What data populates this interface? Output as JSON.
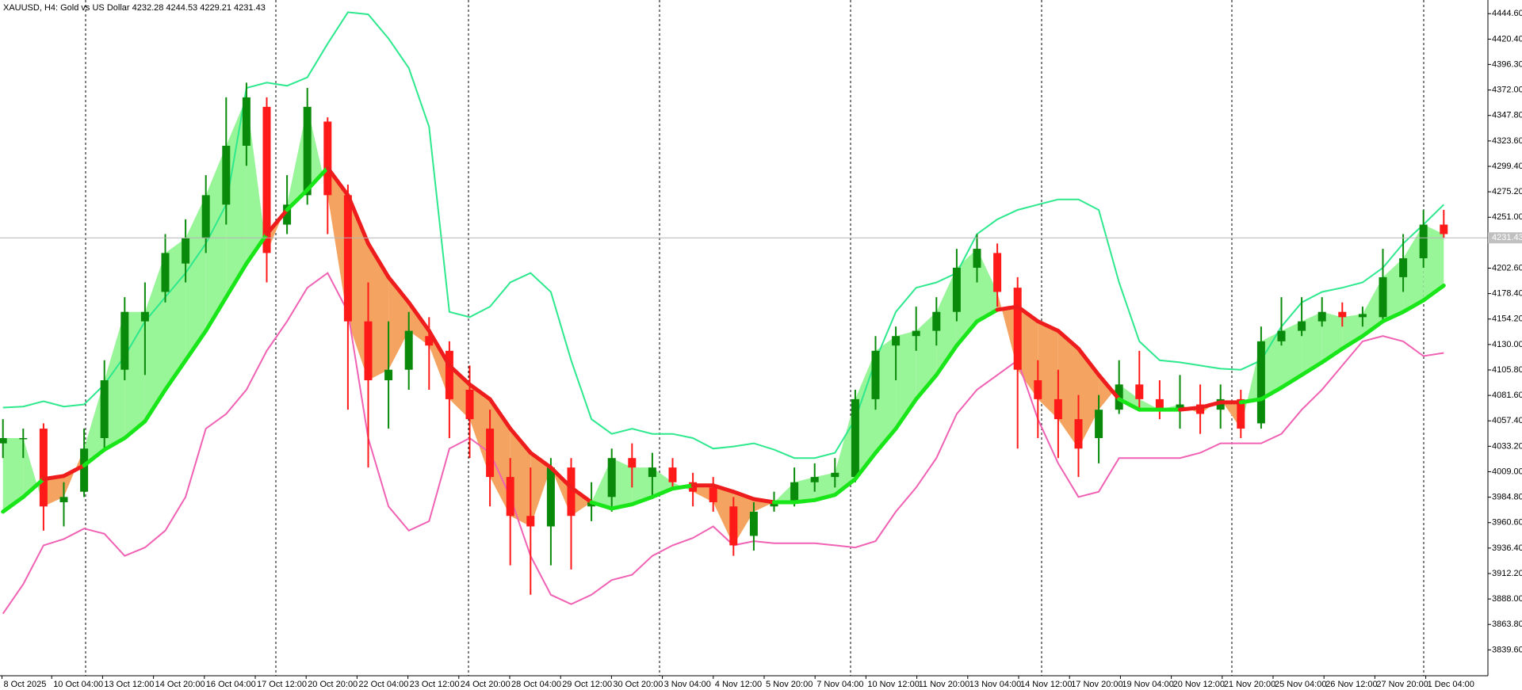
{
  "chart_data": {
    "type": "candlestick",
    "title": "XAUUSD, H4:  Gold vs US Dollar  4232.28 4244.53 4229.21 4231.43",
    "grid": false,
    "ylim": [
      3815.0,
      4457.6
    ],
    "yticks": [
      {
        "value": 4444.6,
        "label": "4444.60"
      },
      {
        "value": 4420.4,
        "label": "4420.40"
      },
      {
        "value": 4396.3,
        "label": "4396.30"
      },
      {
        "value": 4372.0,
        "label": "4372.00"
      },
      {
        "value": 4347.8,
        "label": "4347.80"
      },
      {
        "value": 4323.6,
        "label": "4323.60"
      },
      {
        "value": 4299.4,
        "label": "4299.40"
      },
      {
        "value": 4275.2,
        "label": "4275.20"
      },
      {
        "value": 4251.0,
        "label": "4251.00"
      },
      {
        "value": 4202.6,
        "label": "4202.60"
      },
      {
        "value": 4178.4,
        "label": "4178.40"
      },
      {
        "value": 4154.2,
        "label": "4154.20"
      },
      {
        "value": 4130.0,
        "label": "4130.00"
      },
      {
        "value": 4105.8,
        "label": "4105.80"
      },
      {
        "value": 4081.6,
        "label": "4081.60"
      },
      {
        "value": 4057.4,
        "label": "4057.40"
      },
      {
        "value": 4033.2,
        "label": "4033.20"
      },
      {
        "value": 4009.0,
        "label": "4009.00"
      },
      {
        "value": 3984.8,
        "label": "3984.80"
      },
      {
        "value": 3960.6,
        "label": "3960.60"
      },
      {
        "value": 3936.4,
        "label": "3936.40"
      },
      {
        "value": 3912.2,
        "label": "3912.20"
      },
      {
        "value": 3888.0,
        "label": "3888.00"
      },
      {
        "value": 3863.8,
        "label": "3863.80"
      },
      {
        "value": 3839.6,
        "label": "3839.60"
      }
    ],
    "current_price": 4231.43,
    "xtick_labels": [
      "8 Oct 2025",
      "10 Oct 04:00",
      "13 Oct 12:00",
      "14 Oct 20:00",
      "16 Oct 04:00",
      "17 Oct 12:00",
      "20 Oct 20:00",
      "22 Oct 04:00",
      "23 Oct 12:00",
      "24 Oct 20:00",
      "28 Oct 04:00",
      "29 Oct 12:00",
      "30 Oct 20:00",
      "3 Nov 04:00",
      "4 Nov 12:00",
      "5 Nov 20:00",
      "7 Nov 04:00",
      "10 Nov 12:00",
      "11 Nov 20:00",
      "13 Nov 04:00",
      "14 Nov 12:00",
      "17 Nov 20:00",
      "19 Nov 04:00",
      "20 Nov 12:00",
      "21 Nov 20:00",
      "25 Nov 04:00",
      "26 Nov 12:00",
      "27 Nov 20:00",
      "1 Dec 04:00"
    ],
    "candles": {
      "up_color": "#0a8a0a",
      "down_color": "#ff1a1a",
      "open": [
        4036,
        4041,
        4050,
        3980,
        3990,
        4041,
        4106,
        4152,
        4180,
        4207,
        4231,
        4263,
        4319,
        4356,
        4244,
        4272,
        4342,
        4272,
        4152,
        4096,
        4106,
        4138,
        4124,
        4087,
        4050,
        4004,
        3967,
        3957,
        4013,
        3976,
        3985,
        4022,
        4004,
        4013,
        3999,
        3994,
        3976,
        3948,
        3976,
        3980,
        3999,
        4004,
        4004,
        4078,
        4129,
        4138,
        4143,
        4161,
        4203,
        4217,
        4184,
        4096,
        4078,
        4059,
        4041,
        4068,
        4092,
        4078,
        4068,
        4073,
        4068,
        4078,
        4055,
        4133,
        4143,
        4152,
        4161,
        4156,
        4156,
        4194,
        4212,
        4244
      ],
      "high": [
        4059,
        4050,
        4055,
        3999,
        4050,
        4115,
        4175,
        4189,
        4235,
        4249,
        4291,
        4365,
        4379,
        4365,
        4291,
        4374,
        4346,
        4282,
        4189,
        4152,
        4161,
        4156,
        4133,
        4110,
        4068,
        4022,
        4013,
        4022,
        4022,
        3999,
        4031,
        4036,
        4027,
        4022,
        4008,
        4004,
        3985,
        3980,
        3990,
        4013,
        4017,
        4022,
        4087,
        4138,
        4147,
        4166,
        4175,
        4221,
        4235,
        4226,
        4194,
        4115,
        4106,
        4082,
        4082,
        4115,
        4124,
        4096,
        4101,
        4092,
        4092,
        4087,
        4147,
        4175,
        4175,
        4175,
        4170,
        4166,
        4221,
        4235,
        4258,
        4258
      ],
      "low": [
        4022,
        4022,
        3953,
        3957,
        3985,
        4031,
        4096,
        4101,
        4170,
        4189,
        4217,
        4244,
        4300,
        4189,
        4235,
        4263,
        4235,
        4068,
        4013,
        4050,
        4087,
        4087,
        4041,
        4022,
        3976,
        3920,
        3892,
        3920,
        3916,
        3962,
        3971,
        3994,
        3985,
        3994,
        3976,
        3971,
        3929,
        3934,
        3971,
        3976,
        3990,
        3994,
        3999,
        4068,
        4096,
        4124,
        4129,
        4152,
        4189,
        4166,
        4031,
        4041,
        4022,
        4004,
        4017,
        4064,
        4068,
        4059,
        4050,
        4045,
        4050,
        4041,
        4050,
        4129,
        4138,
        4147,
        4147,
        4147,
        4152,
        4180,
        4203,
        4231
      ],
      "close": [
        4041,
        4041,
        3976,
        3985,
        4031,
        4096,
        4161,
        4161,
        4217,
        4231,
        4272,
        4319,
        4365,
        4217,
        4263,
        4356,
        4272,
        4152,
        4096,
        4106,
        4143,
        4129,
        4078,
        4059,
        4004,
        3967,
        3957,
        4013,
        3967,
        3980,
        4022,
        4013,
        4013,
        3999,
        3990,
        3980,
        3939,
        3971,
        3980,
        3999,
        4004,
        4008,
        4078,
        4124,
        4138,
        4143,
        4161,
        4203,
        4221,
        4180,
        4106,
        4078,
        4059,
        4031,
        4068,
        4092,
        4078,
        4068,
        4073,
        4064,
        4078,
        4050,
        4133,
        4143,
        4152,
        4161,
        4156,
        4159,
        4194,
        4212,
        4244,
        4235
      ]
    },
    "ma": {
      "up_color": "#19e619",
      "down_color": "#ee1c1c",
      "fill_up_color": "#98f598",
      "fill_down_color": "#f4a460",
      "values": [
        3971,
        3985,
        4002,
        4005,
        4015,
        4030,
        4041,
        4057,
        4087,
        4115,
        4143,
        4175,
        4207,
        4235,
        4258,
        4277,
        4298,
        4272,
        4226,
        4194,
        4170,
        4143,
        4110,
        4092,
        4078,
        4050,
        4027,
        4013,
        3994,
        3980,
        3974,
        3978,
        3985,
        3993,
        3996,
        3996,
        3990,
        3983,
        3980,
        3980,
        3982,
        3987,
        4002,
        4027,
        4050,
        4078,
        4101,
        4129,
        4152,
        4163,
        4166,
        4152,
        4143,
        4126,
        4101,
        4078,
        4068,
        4068,
        4068,
        4070,
        4075,
        4075,
        4078,
        4089,
        4101,
        4113,
        4126,
        4138,
        4152,
        4161,
        4172,
        4186
      ]
    },
    "upper_band": {
      "color": "#2ee88e",
      "values": [
        4070,
        4071,
        4076,
        4071,
        4073,
        4092,
        4119,
        4152,
        4175,
        4198,
        4226,
        4263,
        4374,
        4379,
        4376,
        4384,
        4416,
        4446,
        4444,
        4421,
        4393,
        4337,
        4161,
        4156,
        4166,
        4189,
        4198,
        4180,
        4115,
        4059,
        4045,
        4050,
        4045,
        4045,
        4041,
        4031,
        4033,
        4036,
        4030,
        4022,
        4022,
        4027,
        4059,
        4115,
        4161,
        4184,
        4189,
        4198,
        4235,
        4249,
        4258,
        4263,
        4268,
        4268,
        4258,
        4189,
        4133,
        4115,
        4113,
        4110,
        4107,
        4106,
        4115,
        4147,
        4170,
        4180,
        4184,
        4189,
        4203,
        4226,
        4244,
        4263
      ]
    },
    "lower_band": {
      "color": "#f062b4",
      "values": [
        3874,
        3902,
        3939,
        3945,
        3955,
        3950,
        3929,
        3937,
        3953,
        3985,
        4050,
        4064,
        4087,
        4124,
        4152,
        4184,
        4198,
        4161,
        4041,
        3976,
        3953,
        3962,
        4031,
        4041,
        4027,
        3985,
        3929,
        3892,
        3883,
        3892,
        3906,
        3911,
        3929,
        3939,
        3946,
        3957,
        3939,
        3943,
        3941,
        3941,
        3941,
        3939,
        3937,
        3943,
        3971,
        3994,
        4022,
        4064,
        4087,
        4101,
        4115,
        4059,
        4017,
        3985,
        3990,
        4022,
        4022,
        4022,
        4022,
        4027,
        4036,
        4036,
        4036,
        4045,
        4068,
        4087,
        4110,
        4133,
        4138,
        4133,
        4119,
        4122
      ]
    }
  }
}
